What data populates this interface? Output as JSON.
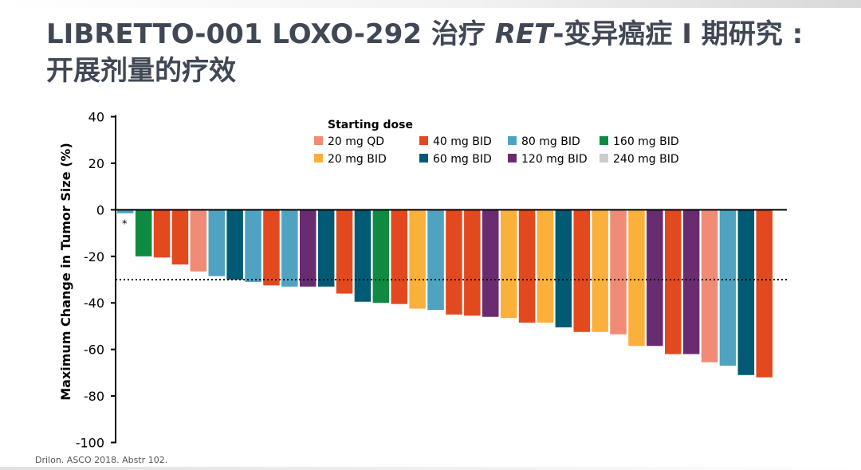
{
  "slide": {
    "title_part1": "LIBRETTO-001 LOXO-292 治疗 ",
    "title_ret": "RET",
    "title_part2": "-变异癌症 I 期研究 : 开展剂量的疗效",
    "footnote": "Drilon. ASCO 2018. Abstr 102."
  },
  "chart_data": {
    "type": "bar",
    "title": "",
    "ylabel": "Maximum Change in Tumor Size (%)",
    "xlabel": "",
    "ylim": [
      -100,
      40
    ],
    "yticks": [
      40,
      20,
      0,
      -20,
      -40,
      -60,
      -80,
      -100
    ],
    "threshold": -30,
    "threshold_style": "dotted",
    "legend": {
      "title": "Starting dose",
      "placement": "top-center",
      "items": [
        {
          "label": "20 mg QD",
          "color": "#F08C76"
        },
        {
          "label": "40 mg BID",
          "color": "#E2491F"
        },
        {
          "label": "80 mg BID",
          "color": "#4FA3C1"
        },
        {
          "label": "160 mg BID",
          "color": "#0E8A43"
        },
        {
          "label": "20 mg BID",
          "color": "#FBB03B"
        },
        {
          "label": "60 mg BID",
          "color": "#005A73"
        },
        {
          "label": "120 mg BID",
          "color": "#6A2C70"
        },
        {
          "label": "240 mg BID",
          "color": "#CCCCCC"
        }
      ]
    },
    "bars": [
      {
        "dose": "80 mg BID",
        "value": -1.5,
        "annotation": "*"
      },
      {
        "dose": "160 mg BID",
        "value": -20
      },
      {
        "dose": "40 mg BID",
        "value": -20.5
      },
      {
        "dose": "40 mg BID",
        "value": -23.5
      },
      {
        "dose": "20 mg QD",
        "value": -26.5
      },
      {
        "dose": "80 mg BID",
        "value": -28.5
      },
      {
        "dose": "60 mg BID",
        "value": -30
      },
      {
        "dose": "80 mg BID",
        "value": -31
      },
      {
        "dose": "40 mg BID",
        "value": -32.5
      },
      {
        "dose": "80 mg BID",
        "value": -33
      },
      {
        "dose": "120 mg BID",
        "value": -33
      },
      {
        "dose": "60 mg BID",
        "value": -33
      },
      {
        "dose": "40 mg BID",
        "value": -36
      },
      {
        "dose": "60 mg BID",
        "value": -39.5
      },
      {
        "dose": "160 mg BID",
        "value": -40
      },
      {
        "dose": "40 mg BID",
        "value": -40.5
      },
      {
        "dose": "20 mg BID",
        "value": -42.5
      },
      {
        "dose": "80 mg BID",
        "value": -43
      },
      {
        "dose": "40 mg BID",
        "value": -45
      },
      {
        "dose": "40 mg BID",
        "value": -45.5
      },
      {
        "dose": "120 mg BID",
        "value": -46
      },
      {
        "dose": "20 mg BID",
        "value": -46.5
      },
      {
        "dose": "40 mg BID",
        "value": -48.5
      },
      {
        "dose": "20 mg BID",
        "value": -48.5
      },
      {
        "dose": "60 mg BID",
        "value": -50.5
      },
      {
        "dose": "40 mg BID",
        "value": -52.5
      },
      {
        "dose": "20 mg BID",
        "value": -52.5
      },
      {
        "dose": "20 mg QD",
        "value": -53.5
      },
      {
        "dose": "20 mg BID",
        "value": -58.5
      },
      {
        "dose": "120 mg BID",
        "value": -58.5
      },
      {
        "dose": "40 mg BID",
        "value": -62
      },
      {
        "dose": "120 mg BID",
        "value": -62
      },
      {
        "dose": "20 mg QD",
        "value": -65.5
      },
      {
        "dose": "80 mg BID",
        "value": -67
      },
      {
        "dose": "60 mg BID",
        "value": -71
      },
      {
        "dose": "40 mg BID",
        "value": -72
      }
    ]
  }
}
